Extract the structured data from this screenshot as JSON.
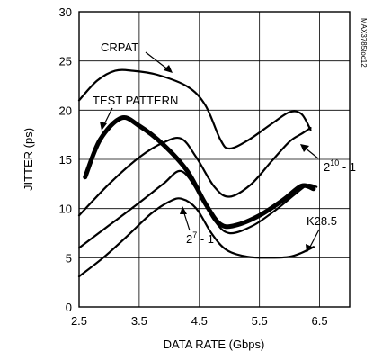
{
  "chart_data": {
    "type": "line",
    "title": "",
    "xlabel": "DATA RATE (Gbps)",
    "ylabel": "JITTER (ps)",
    "xlim": [
      2.5,
      7
    ],
    "ylim": [
      0,
      30
    ],
    "x_ticks": [
      "2.5",
      "3.5",
      "4.5",
      "5.5",
      "6.5"
    ],
    "y_ticks": [
      "0",
      "5",
      "10",
      "15",
      "20",
      "25",
      "30"
    ],
    "grid": true,
    "side_label": "MAX3785toc12",
    "series": [
      {
        "name": "CRPAT",
        "stroke_width": 2.2,
        "points": [
          [
            2.5,
            21
          ],
          [
            2.8,
            23
          ],
          [
            3.1,
            24
          ],
          [
            3.4,
            24
          ],
          [
            3.8,
            23.6
          ],
          [
            4.3,
            22.4
          ],
          [
            4.6,
            20.5
          ],
          [
            4.85,
            17
          ],
          [
            5.0,
            16.1
          ],
          [
            5.3,
            16.9
          ],
          [
            5.7,
            18.6
          ],
          [
            6.0,
            19.8
          ],
          [
            6.2,
            19.6
          ],
          [
            6.35,
            18
          ]
        ]
      },
      {
        "name": "TEST PATTERN",
        "stroke_width": 5,
        "points": [
          [
            2.6,
            13.2
          ],
          [
            2.85,
            17
          ],
          [
            3.2,
            19.2
          ],
          [
            3.5,
            18.4
          ],
          [
            3.9,
            16.5
          ],
          [
            4.3,
            13.8
          ],
          [
            4.6,
            10.5
          ],
          [
            4.85,
            8.4
          ],
          [
            5.1,
            8.3
          ],
          [
            5.5,
            9.3
          ],
          [
            5.9,
            10.9
          ],
          [
            6.2,
            12.3
          ],
          [
            6.4,
            12
          ]
        ]
      },
      {
        "name": "2^10 - 1",
        "stroke_width": 2.2,
        "points": [
          [
            2.5,
            9.3
          ],
          [
            3.0,
            12.5
          ],
          [
            3.5,
            15.2
          ],
          [
            3.9,
            16.7
          ],
          [
            4.2,
            17.1
          ],
          [
            4.45,
            15.2
          ],
          [
            4.75,
            12.2
          ],
          [
            5.0,
            11.2
          ],
          [
            5.35,
            12.4
          ],
          [
            5.7,
            14.8
          ],
          [
            6.0,
            16.8
          ],
          [
            6.2,
            17.6
          ],
          [
            6.35,
            18.2
          ]
        ]
      },
      {
        "name": "2^7 - 1",
        "stroke_width": 2.2,
        "points": [
          [
            2.5,
            6
          ],
          [
            3.0,
            8.3
          ],
          [
            3.5,
            10.6
          ],
          [
            3.9,
            12.5
          ],
          [
            4.2,
            13.8
          ],
          [
            4.5,
            11.5
          ],
          [
            4.75,
            8.8
          ],
          [
            5.0,
            7.5
          ],
          [
            5.4,
            8.3
          ],
          [
            5.8,
            10
          ],
          [
            6.1,
            11.5
          ],
          [
            6.3,
            12.4
          ],
          [
            6.45,
            12.2
          ]
        ]
      },
      {
        "name": "K28.5",
        "stroke_width": 2.2,
        "points": [
          [
            2.5,
            3.1
          ],
          [
            2.9,
            5
          ],
          [
            3.3,
            7.2
          ],
          [
            3.7,
            9.5
          ],
          [
            4.0,
            10.7
          ],
          [
            4.2,
            11
          ],
          [
            4.45,
            10
          ],
          [
            4.7,
            7.5
          ],
          [
            4.95,
            5.8
          ],
          [
            5.3,
            5.1
          ],
          [
            5.7,
            5
          ],
          [
            6.0,
            5.1
          ],
          [
            6.2,
            5.5
          ],
          [
            6.4,
            6.1
          ]
        ]
      }
    ],
    "annotations": [
      {
        "id": "crpat",
        "text": "CRPAT"
      },
      {
        "id": "test-pattern",
        "text": "TEST PATTERN"
      },
      {
        "id": "two-ten",
        "base": "2",
        "sup": "10",
        "rest": " - 1"
      },
      {
        "id": "two-seven",
        "base": "2",
        "sup": "7",
        "rest": " - 1"
      },
      {
        "id": "k285",
        "text": "K28.5"
      }
    ]
  }
}
